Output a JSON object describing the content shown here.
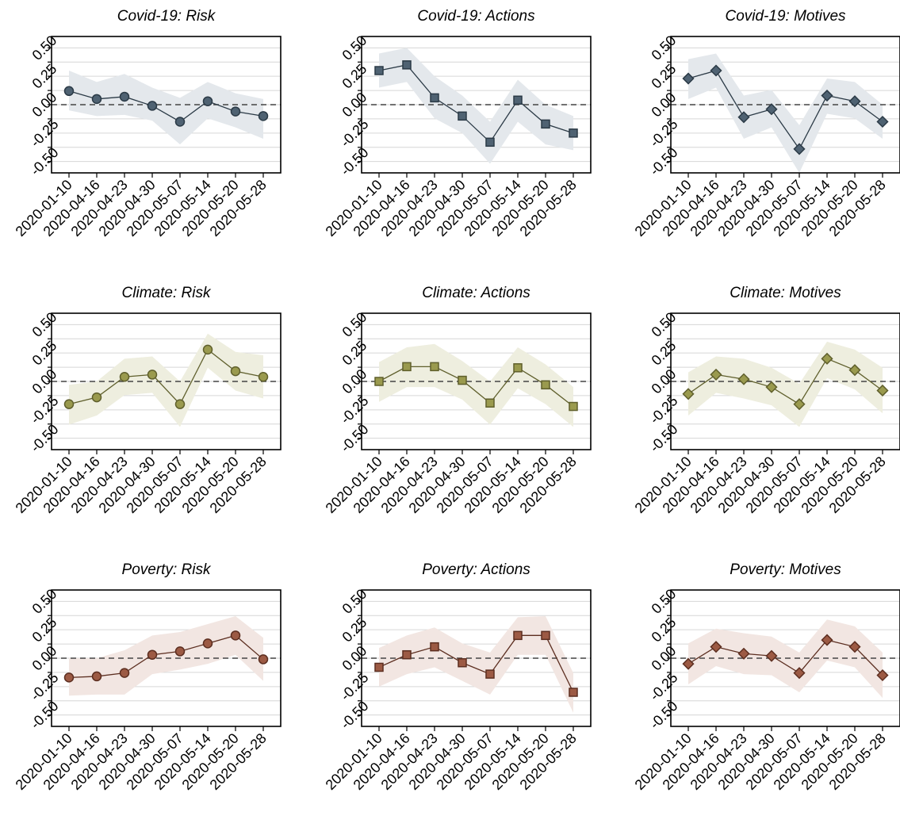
{
  "colors": {
    "covid": {
      "fill": "#4f6272",
      "band": "#e4e8ec",
      "stroke": "#2b3a46"
    },
    "climate": {
      "fill": "#9a9a4e",
      "band": "#eeeedf",
      "stroke": "#5f5f2c"
    },
    "poverty": {
      "fill": "#9c5a44",
      "band": "#f2e6e2",
      "stroke": "#5c2e20"
    }
  },
  "chart_data": [
    {
      "type": "line",
      "title": "Covid-19: Risk",
      "group": "covid",
      "marker": "circle",
      "categories": [
        "2020-01-10",
        "2020-04-16",
        "2020-04-23",
        "2020-04-30",
        "2020-05-07",
        "2020-05-14",
        "2020-05-20",
        "2020-05-28"
      ],
      "values": [
        0.12,
        0.05,
        0.07,
        -0.01,
        -0.15,
        0.03,
        -0.06,
        -0.1
      ],
      "ci_low": [
        -0.05,
        -0.1,
        -0.09,
        -0.14,
        -0.35,
        -0.12,
        -0.2,
        -0.3
      ],
      "ci_high": [
        0.3,
        0.2,
        0.27,
        0.15,
        0.06,
        0.2,
        0.1,
        0.05
      ],
      "ylim": [
        -0.6,
        0.6
      ],
      "yticks": [
        "-0.50",
        "-0.25",
        "0.00",
        "0.25",
        "0.50"
      ],
      "reference_line": 0
    },
    {
      "type": "line",
      "title": "Covid-19: Actions",
      "group": "covid",
      "marker": "square",
      "categories": [
        "2020-01-10",
        "2020-04-16",
        "2020-04-23",
        "2020-04-30",
        "2020-05-07",
        "2020-05-14",
        "2020-05-20",
        "2020-05-28"
      ],
      "values": [
        0.3,
        0.35,
        0.06,
        -0.1,
        -0.33,
        0.04,
        -0.17,
        -0.25
      ],
      "ci_low": [
        0.15,
        0.2,
        -0.12,
        -0.25,
        -0.52,
        -0.15,
        -0.35,
        -0.4
      ],
      "ci_high": [
        0.45,
        0.5,
        0.25,
        0.08,
        -0.15,
        0.22,
        0.0,
        -0.1
      ],
      "ylim": [
        -0.6,
        0.6
      ],
      "yticks": [
        "-0.50",
        "-0.25",
        "0.00",
        "0.25",
        "0.50"
      ],
      "reference_line": 0
    },
    {
      "type": "line",
      "title": "Covid-19: Motives",
      "group": "covid",
      "marker": "diamond",
      "categories": [
        "2020-01-10",
        "2020-04-16",
        "2020-04-23",
        "2020-04-30",
        "2020-05-07",
        "2020-05-14",
        "2020-05-20",
        "2020-05-28"
      ],
      "values": [
        0.23,
        0.3,
        -0.11,
        -0.04,
        -0.39,
        0.08,
        0.03,
        -0.15
      ],
      "ci_low": [
        0.05,
        0.15,
        -0.3,
        -0.2,
        -0.6,
        -0.08,
        -0.12,
        -0.3
      ],
      "ci_high": [
        0.4,
        0.45,
        0.08,
        0.13,
        -0.18,
        0.23,
        0.2,
        0.0
      ],
      "ylim": [
        -0.6,
        0.6
      ],
      "yticks": [
        "-0.50",
        "-0.25",
        "0.00",
        "0.25",
        "0.50"
      ],
      "reference_line": 0
    },
    {
      "type": "line",
      "title": "Climate: Risk",
      "group": "climate",
      "marker": "circle",
      "categories": [
        "2020-01-10",
        "2020-04-16",
        "2020-04-23",
        "2020-04-30",
        "2020-05-07",
        "2020-05-14",
        "2020-05-20",
        "2020-05-28"
      ],
      "values": [
        -0.2,
        -0.14,
        0.04,
        0.06,
        -0.2,
        0.28,
        0.09,
        0.04
      ],
      "ci_low": [
        -0.38,
        -0.3,
        -0.12,
        -0.1,
        -0.4,
        0.12,
        -0.08,
        -0.15
      ],
      "ci_high": [
        -0.03,
        0.0,
        0.2,
        0.22,
        0.0,
        0.42,
        0.26,
        0.23
      ],
      "ylim": [
        -0.6,
        0.6
      ],
      "yticks": [
        "-0.50",
        "-0.25",
        "0.00",
        "0.25",
        "0.50"
      ],
      "reference_line": 0
    },
    {
      "type": "line",
      "title": "Climate: Actions",
      "group": "climate",
      "marker": "square",
      "categories": [
        "2020-01-10",
        "2020-04-16",
        "2020-04-23",
        "2020-04-30",
        "2020-05-07",
        "2020-05-14",
        "2020-05-20",
        "2020-05-28"
      ],
      "values": [
        0.0,
        0.13,
        0.13,
        0.01,
        -0.19,
        0.12,
        -0.03,
        -0.22
      ],
      "ci_low": [
        -0.18,
        -0.05,
        -0.05,
        -0.16,
        -0.38,
        -0.06,
        -0.2,
        -0.4
      ],
      "ci_high": [
        0.17,
        0.3,
        0.33,
        0.18,
        0.0,
        0.3,
        0.15,
        -0.05
      ],
      "ylim": [
        -0.6,
        0.6
      ],
      "yticks": [
        "-0.50",
        "-0.25",
        "0.00",
        "0.25",
        "0.50"
      ],
      "reference_line": 0
    },
    {
      "type": "line",
      "title": "Climate: Motives",
      "group": "climate",
      "marker": "diamond",
      "categories": [
        "2020-01-10",
        "2020-04-16",
        "2020-04-23",
        "2020-04-30",
        "2020-05-07",
        "2020-05-14",
        "2020-05-20",
        "2020-05-28"
      ],
      "values": [
        -0.11,
        0.06,
        0.02,
        -0.05,
        -0.2,
        0.2,
        0.1,
        -0.08
      ],
      "ci_low": [
        -0.3,
        -0.1,
        -0.15,
        -0.21,
        -0.4,
        0.03,
        -0.07,
        -0.28
      ],
      "ci_high": [
        0.08,
        0.22,
        0.2,
        0.12,
        -0.02,
        0.35,
        0.28,
        0.12
      ],
      "ylim": [
        -0.6,
        0.6
      ],
      "yticks": [
        "-0.50",
        "-0.25",
        "0.00",
        "0.25",
        "0.50"
      ],
      "reference_line": 0
    },
    {
      "type": "line",
      "title": "Poverty: Risk",
      "group": "poverty",
      "marker": "circle",
      "categories": [
        "2020-01-10",
        "2020-04-16",
        "2020-04-23",
        "2020-04-30",
        "2020-05-07",
        "2020-05-14",
        "2020-05-20",
        "2020-05-28"
      ],
      "values": [
        -0.17,
        -0.16,
        -0.13,
        0.03,
        0.06,
        0.13,
        0.2,
        -0.01
      ],
      "ci_low": [
        -0.33,
        -0.32,
        -0.32,
        -0.14,
        -0.1,
        -0.05,
        0.03,
        -0.2
      ],
      "ci_high": [
        0.0,
        0.0,
        0.07,
        0.2,
        0.23,
        0.3,
        0.37,
        0.18
      ],
      "ylim": [
        -0.6,
        0.6
      ],
      "yticks": [
        "-0.50",
        "-0.25",
        "0.00",
        "0.25",
        "0.50"
      ],
      "reference_line": 0
    },
    {
      "type": "line",
      "title": "Poverty: Actions",
      "group": "poverty",
      "marker": "square",
      "categories": [
        "2020-01-10",
        "2020-04-16",
        "2020-04-23",
        "2020-04-30",
        "2020-05-07",
        "2020-05-14",
        "2020-05-20",
        "2020-05-28"
      ],
      "values": [
        -0.08,
        0.03,
        0.1,
        -0.04,
        -0.14,
        0.2,
        0.2,
        -0.3
      ],
      "ci_low": [
        -0.25,
        -0.14,
        -0.08,
        -0.2,
        -0.32,
        0.03,
        0.03,
        -0.48
      ],
      "ci_high": [
        0.09,
        0.2,
        0.27,
        0.13,
        0.05,
        0.36,
        0.37,
        -0.13
      ],
      "ylim": [
        -0.6,
        0.6
      ],
      "yticks": [
        "-0.50",
        "-0.25",
        "0.00",
        "0.25",
        "0.50"
      ],
      "reference_line": 0
    },
    {
      "type": "line",
      "title": "Poverty: Motives",
      "group": "poverty",
      "marker": "diamond",
      "categories": [
        "2020-01-10",
        "2020-04-16",
        "2020-04-23",
        "2020-04-30",
        "2020-05-07",
        "2020-05-14",
        "2020-05-20",
        "2020-05-28"
      ],
      "values": [
        -0.05,
        0.1,
        0.04,
        0.02,
        -0.13,
        0.16,
        0.1,
        -0.15
      ],
      "ci_low": [
        -0.23,
        -0.07,
        -0.14,
        -0.15,
        -0.3,
        -0.02,
        -0.08,
        -0.35
      ],
      "ci_high": [
        0.13,
        0.26,
        0.22,
        0.19,
        0.05,
        0.34,
        0.28,
        0.05
      ],
      "ylim": [
        -0.6,
        0.6
      ],
      "yticks": [
        "-0.50",
        "-0.25",
        "0.00",
        "0.25",
        "0.50"
      ],
      "reference_line": 0
    }
  ]
}
